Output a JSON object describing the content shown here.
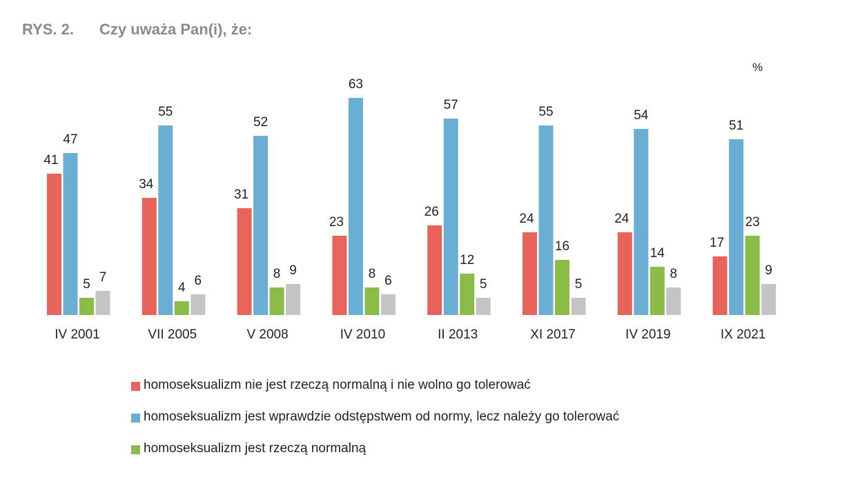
{
  "header": {
    "figure_label": "RYS. 2.",
    "question": "Czy uważa Pan(i), że:"
  },
  "unit": "%",
  "colors": {
    "series1": "#e8645a",
    "series2": "#6aaed3",
    "series3": "#8bbc48",
    "series4": "#c4c4c4"
  },
  "chart_data": {
    "type": "bar",
    "title": "Czy uważa Pan(i), że:",
    "unit": "%",
    "categories": [
      "IV 2001",
      "VII 2005",
      "V 2008",
      "IV 2010",
      "II 2013",
      "XI 2017",
      "IV 2019",
      "IX 2021"
    ],
    "series": [
      {
        "name": "homoseksualizm nie jest rzeczą normalną i nie wolno go tolerować",
        "color": "#e8645a",
        "values": [
          41,
          34,
          31,
          23,
          26,
          24,
          24,
          17
        ]
      },
      {
        "name": "homoseksualizm jest wprawdzie odstępstwem od normy, lecz należy go tolerować",
        "color": "#6aaed3",
        "values": [
          47,
          55,
          52,
          63,
          57,
          55,
          54,
          51
        ]
      },
      {
        "name": "homoseksualizm jest rzeczą normalną",
        "color": "#8bbc48",
        "values": [
          5,
          4,
          8,
          8,
          12,
          16,
          14,
          23
        ]
      },
      {
        "name": "",
        "color": "#c4c4c4",
        "values": [
          7,
          6,
          9,
          6,
          5,
          5,
          8,
          9
        ]
      }
    ],
    "ylim": [
      0,
      63
    ],
    "grid": false,
    "legend_position": "bottom"
  },
  "legend": [
    {
      "label": "homoseksualizm nie jest rzeczą normalną i nie wolno go tolerować",
      "color": "#e8645a"
    },
    {
      "label": "homoseksualizm jest wprawdzie odstępstwem od normy, lecz należy go tolerować",
      "color": "#6aaed3"
    },
    {
      "label": "homoseksualizm jest rzeczą normalną",
      "color": "#8bbc48"
    }
  ]
}
